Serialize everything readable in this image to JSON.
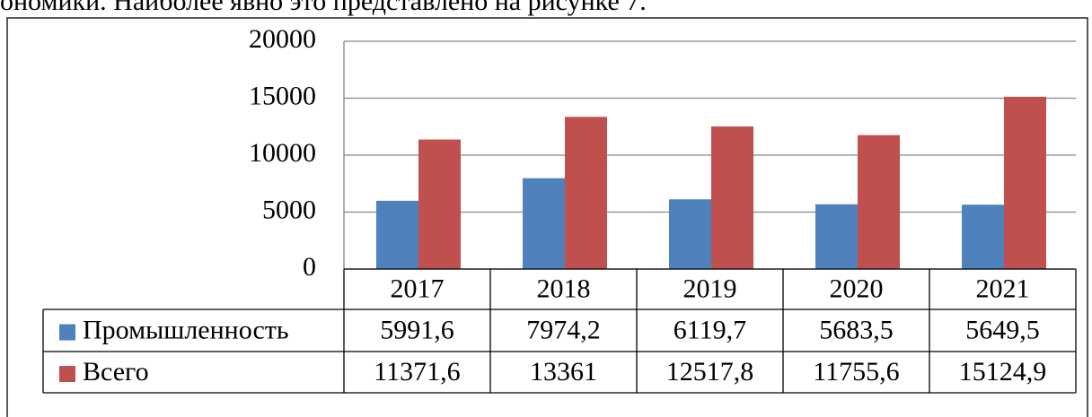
{
  "caption_fragment": "ономики. Наиболее явно это представлено на рисунке 7.",
  "chart_data": {
    "type": "bar",
    "categories": [
      "2017",
      "2018",
      "2019",
      "2020",
      "2021"
    ],
    "series": [
      {
        "name": "Промышленность",
        "color": "#4f81bd",
        "values": [
          5991.6,
          7974.2,
          6119.7,
          5683.5,
          5649.5
        ],
        "value_labels": [
          "5991,6",
          "7974,2",
          "6119,7",
          "5683,5",
          "5649,5"
        ]
      },
      {
        "name": "Всего",
        "color": "#c0504d",
        "values": [
          11371.6,
          13361,
          12517.8,
          11755.6,
          15124.9
        ],
        "value_labels": [
          "11371,6",
          "13361",
          "12517,8",
          "11755,6",
          "15124,9"
        ]
      }
    ],
    "ylim": [
      0,
      20000
    ],
    "yticks": [
      0,
      5000,
      10000,
      15000,
      20000
    ],
    "grid": true,
    "data_table": true
  }
}
